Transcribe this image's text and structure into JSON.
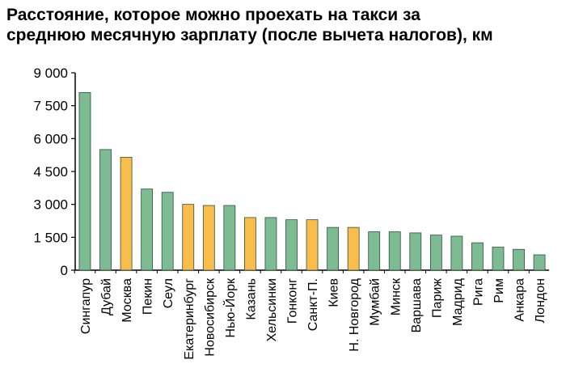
{
  "title": {
    "line1": "Расстояние, которое можно проехать на такси за",
    "line2": "среднюю месячную зарплату (после вычета налогов), км"
  },
  "colors": {
    "green": "#7dbb93",
    "orange": "#f9bd4c",
    "bar_stroke": "#2f4f3a",
    "axis": "#000000"
  },
  "chart_data": {
    "type": "bar",
    "title": "Расстояние, которое можно проехать на такси за среднюю месячную зарплату (после вычета налогов), км",
    "ylim": [
      0,
      9000
    ],
    "yticks": [
      0,
      1500,
      3000,
      4500,
      6000,
      7500,
      9000
    ],
    "ytick_labels": [
      "0",
      "1 500",
      "3 000",
      "4 500",
      "6 000",
      "7 500",
      "9 000"
    ],
    "grid": false,
    "categories": [
      "Сингапур",
      "Дубай",
      "Москва",
      "Пекин",
      "Сеул",
      "Екатеринбург",
      "Новосибирск",
      "Нью-Йорк",
      "Казань",
      "Хельсинки",
      "Гонконг",
      "Санкт-П.",
      "Киев",
      "Н. Новгород",
      "Мумбай",
      "Минск",
      "Варшава",
      "Париж",
      "Мадрид",
      "Рига",
      "Рим",
      "Анкара",
      "Лондон"
    ],
    "values": [
      8100,
      5500,
      5150,
      3700,
      3550,
      3000,
      2950,
      2950,
      2400,
      2400,
      2300,
      2300,
      1950,
      1950,
      1750,
      1750,
      1700,
      1600,
      1550,
      1250,
      1050,
      950,
      700
    ],
    "highlight": [
      false,
      false,
      true,
      false,
      false,
      true,
      true,
      false,
      true,
      false,
      false,
      true,
      false,
      true,
      false,
      false,
      false,
      false,
      false,
      false,
      false,
      false,
      false
    ]
  }
}
